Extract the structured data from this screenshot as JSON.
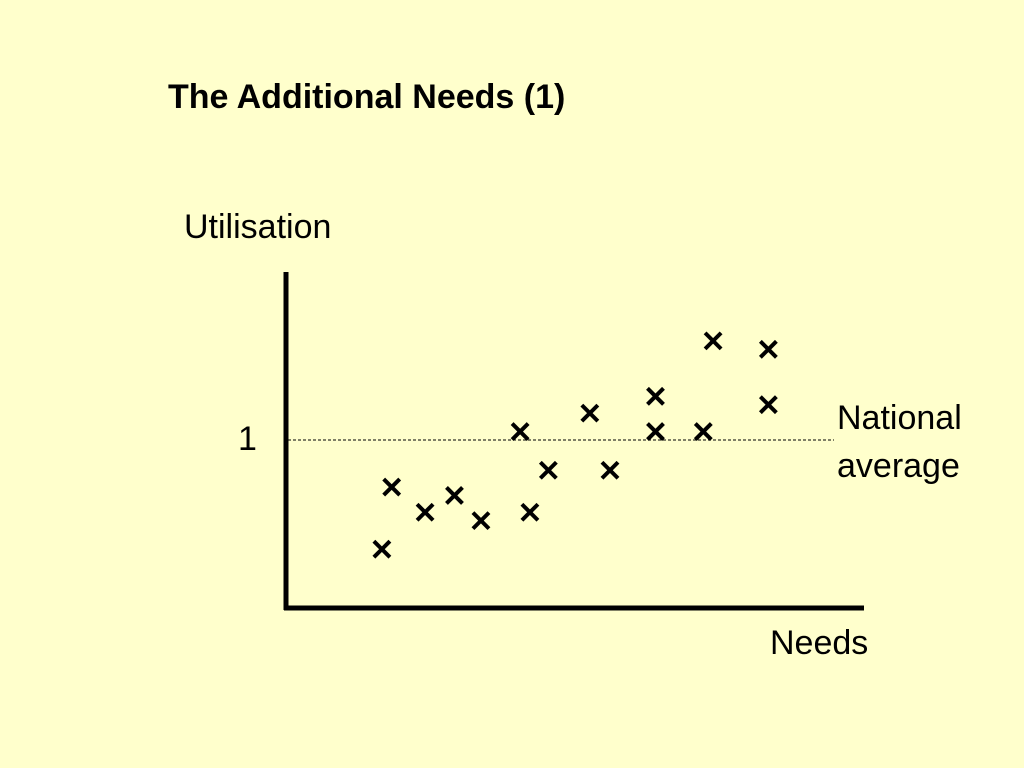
{
  "slide": {
    "title": "The Additional Needs (1)"
  },
  "colors": {
    "background": "#ffffcc",
    "ink": "#000000"
  },
  "chart_data": {
    "type": "scatter",
    "title": "The Additional Needs (1)",
    "xlabel": "Needs",
    "ylabel": "Utilisation",
    "xlim": [
      0,
      1
    ],
    "ylim": [
      0,
      2
    ],
    "y_ticks": [
      {
        "value": 1,
        "label": "1"
      }
    ],
    "reference_line": {
      "y": 1,
      "label_line1": "National",
      "label_line2": "average",
      "style": "dashed"
    },
    "marker": "x",
    "points": [
      {
        "x": 0.163,
        "y": 0.35
      },
      {
        "x": 0.18,
        "y": 0.72
      },
      {
        "x": 0.238,
        "y": 0.57
      },
      {
        "x": 0.289,
        "y": 0.67
      },
      {
        "x": 0.335,
        "y": 0.52
      },
      {
        "x": 0.403,
        "y": 1.05
      },
      {
        "x": 0.42,
        "y": 0.57
      },
      {
        "x": 0.452,
        "y": 0.82
      },
      {
        "x": 0.524,
        "y": 1.16
      },
      {
        "x": 0.559,
        "y": 0.82
      },
      {
        "x": 0.638,
        "y": 1.26
      },
      {
        "x": 0.638,
        "y": 1.05
      },
      {
        "x": 0.721,
        "y": 1.05
      },
      {
        "x": 0.738,
        "y": 1.59
      },
      {
        "x": 0.834,
        "y": 1.54
      },
      {
        "x": 0.834,
        "y": 1.21
      }
    ],
    "grid": false,
    "legend": "none"
  }
}
